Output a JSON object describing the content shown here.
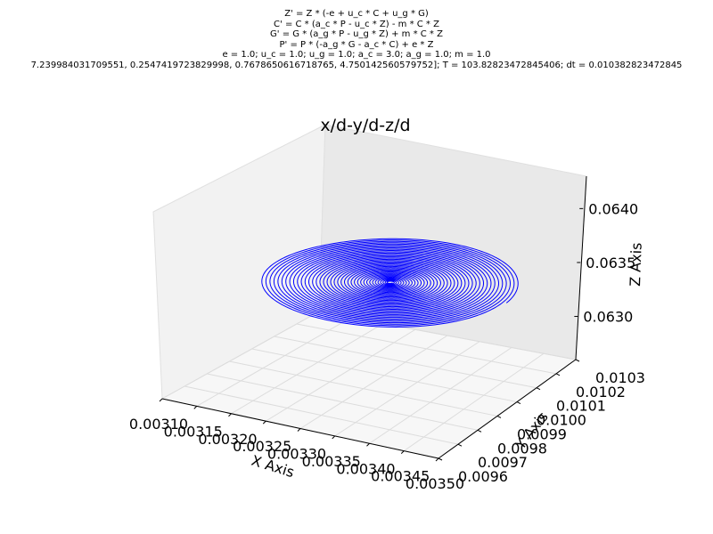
{
  "header_lines": [
    "Z' = Z * (-e + u_c * C + u_g * G)",
    "C' = C * (a_c * P - u_c * Z) - m * C * Z",
    "G' = G * (a_g * P - u_g * Z) + m * C * Z",
    "P' = P * (-a_g * G - a_c * C) + e * Z",
    "e = 1.0; u_c = 1.0; u_g = 1.0; a_c = 3.0; a_g = 1.0; m = 1.0",
    "7.239984031709551, 0.2547419723829998, 0.7678650616718765, 4.750142560579752]; T = 103.82823472845406; dt = 0.010382823472845"
  ],
  "chart_data": {
    "type": "line",
    "projection": "3d",
    "title": "x/d-y/d-z/d",
    "xlabel": "X Axis",
    "ylabel": "Y Axis",
    "zlabel": "Z Axis",
    "xlim": [
      0.0031,
      0.0035
    ],
    "ylim": [
      0.0096,
      0.0103
    ],
    "zlim": [
      0.0626,
      0.0643
    ],
    "xticks": [
      "0.00310",
      "0.00315",
      "0.00320",
      "0.00325",
      "0.00330",
      "0.00335",
      "0.00340",
      "0.00345",
      "0.00350"
    ],
    "yticks": [
      "0.0096",
      "0.0097",
      "0.0098",
      "0.0099",
      "0.0100",
      "0.0101",
      "0.0102",
      "0.0103"
    ],
    "zticks": [
      "0.0630",
      "0.0635",
      "0.0640"
    ],
    "grid": true,
    "series": [
      {
        "color": "#0000ff",
        "description_of_shape": "inward spiral converging to a fixed point",
        "center": {
          "x": 0.003305,
          "y": 0.00999,
          "z": 0.06348
        },
        "initial_amplitude": {
          "x": 0.000175,
          "y": 0.00027,
          "z": 0.00013
        },
        "turns": 38
      }
    ]
  }
}
